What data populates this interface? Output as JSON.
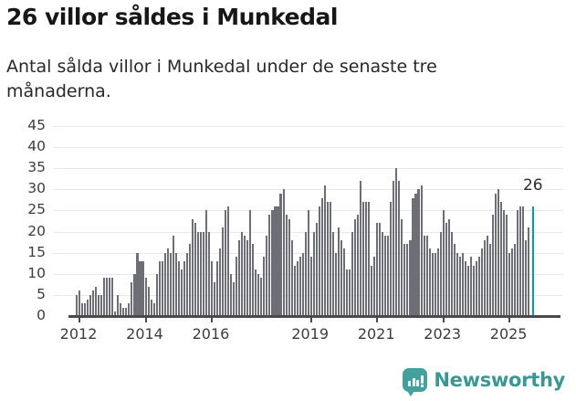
{
  "header": {
    "title": "26 villor såldes i Munkedal",
    "subtitle": "Antal sålda villor i Munkedal under de senaste tre månaderna."
  },
  "chart_data": {
    "type": "bar",
    "title": "26 villor såldes i Munkedal",
    "subtitle": "Antal sålda villor i Munkedal under de senaste tre månaderna.",
    "frequency": "monthly",
    "x_start": "2011-12",
    "x_end": "2025-09",
    "values": [
      5,
      6,
      3,
      3,
      4,
      5,
      6,
      7,
      5,
      5,
      9,
      9,
      9,
      9,
      1,
      5,
      3,
      2,
      2,
      3,
      8,
      10,
      15,
      13,
      13,
      9,
      7,
      4,
      3,
      10,
      13,
      13,
      15,
      16,
      15,
      19,
      15,
      13,
      11,
      13,
      15,
      17,
      23,
      22,
      20,
      20,
      20,
      25,
      20,
      13,
      8,
      13,
      16,
      21,
      25,
      26,
      10,
      8,
      14,
      18,
      20,
      19,
      18,
      25,
      17,
      11,
      10,
      9,
      14,
      19,
      24,
      25,
      26,
      26,
      29,
      30,
      24,
      23,
      18,
      12,
      13,
      14,
      15,
      20,
      25,
      14,
      20,
      22,
      26,
      28,
      31,
      27,
      27,
      20,
      15,
      21,
      18,
      16,
      11,
      11,
      20,
      23,
      24,
      32,
      27,
      27,
      27,
      12,
      14,
      22,
      22,
      20,
      19,
      19,
      27,
      32,
      35,
      32,
      23,
      17,
      17,
      18,
      28,
      29,
      30,
      31,
      19,
      19,
      16,
      15,
      15,
      16,
      20,
      25,
      22,
      23,
      20,
      17,
      15,
      14,
      15,
      13,
      12,
      14,
      12,
      13,
      14,
      16,
      18,
      19,
      17,
      24,
      29,
      30,
      27,
      25,
      24,
      15,
      16,
      17,
      25,
      26,
      26,
      18,
      21,
      26
    ],
    "highlight": {
      "index": 165,
      "value": 26,
      "label": "26"
    },
    "y_ticks": [
      0,
      5,
      10,
      15,
      20,
      25,
      30,
      35,
      40,
      45
    ],
    "ylim": [
      0,
      45
    ],
    "x_tick_years": [
      2012,
      2014,
      2016,
      2019,
      2021,
      2023,
      2025
    ],
    "x_tick_labels": [
      "2012",
      "2014",
      "2016",
      "2019",
      "2021",
      "2023",
      "2025"
    ],
    "grid": true,
    "legend": false,
    "bar_color": "#6e6e76",
    "highlight_color": "#00a1a1"
  },
  "footer": {
    "brand": "Newsworthy"
  },
  "colors": {
    "bar": "#6e6e76",
    "highlight": "#00a1a1",
    "brand_teal": "#3b9794",
    "grid": "#e8e8e8",
    "axis": "#4a4a4a"
  }
}
